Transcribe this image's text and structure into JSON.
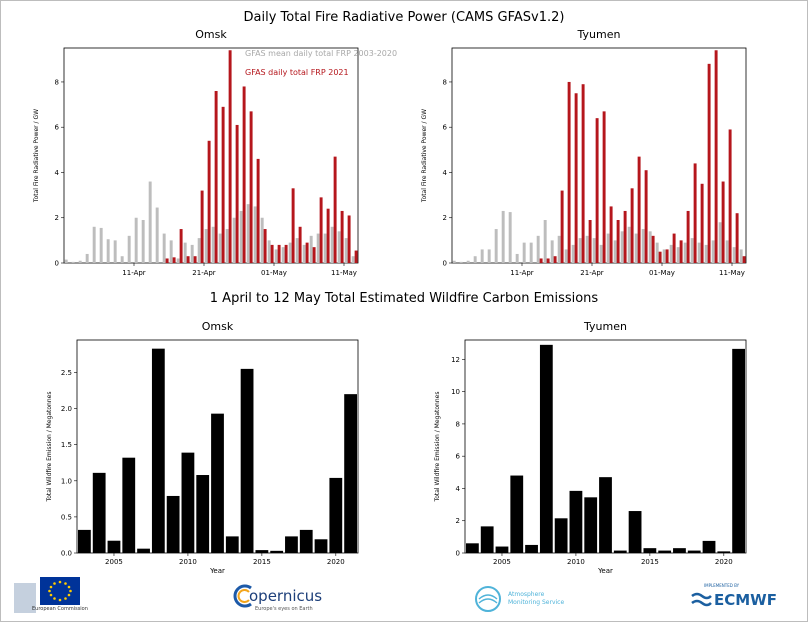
{
  "titles": {
    "top": "Daily Total Fire Radiative Power (CAMS GFASv1.2)",
    "bottom": "1 April to 12 May Total Estimated Wildfire Carbon Emissions"
  },
  "colors": {
    "mean": "#bdbdbd",
    "daily": "#b5161c",
    "emission": "#000000"
  },
  "chart_data": [
    {
      "type": "bar",
      "title": "Omsk",
      "ylabel": "Total Fire Radiative Power / GW",
      "ylim": [
        0,
        9.5
      ],
      "yticks": [
        "0",
        "2",
        "4",
        "6",
        "8"
      ],
      "ytick_values": [
        0,
        2,
        4,
        6,
        8
      ],
      "xticks": [
        "11-Apr",
        "21-Apr",
        "01-May",
        "11-May"
      ],
      "xtick_days": [
        10,
        20,
        30,
        40
      ],
      "x_days": 42,
      "legend_position": "top-center",
      "series": [
        {
          "name": "GFAS mean daily total FRP  2003-2020",
          "values": [
            0.15,
            0.05,
            0.1,
            0.4,
            1.6,
            1.55,
            1.05,
            1.0,
            0.3,
            1.2,
            2.0,
            1.9,
            3.6,
            2.45,
            1.3,
            1.0,
            0.2,
            0.9,
            0.8,
            1.1,
            1.5,
            1.6,
            1.3,
            1.5,
            2.0,
            2.3,
            2.6,
            2.5,
            2.0,
            1.0,
            0.6,
            0.7,
            0.9,
            1.1,
            0.8,
            1.2,
            1.3,
            1.3,
            1.6,
            1.4,
            1.1,
            0.3
          ]
        },
        {
          "name": "GFAS daily total FRP  2021",
          "values": [
            0,
            0,
            0,
            0,
            0,
            0,
            0,
            0,
            0,
            0,
            0,
            0,
            0,
            0,
            0.2,
            0.25,
            1.5,
            0.3,
            0.3,
            3.2,
            5.4,
            7.6,
            6.9,
            9.4,
            6.1,
            7.8,
            6.7,
            4.6,
            1.5,
            0.8,
            0.8,
            0.8,
            3.3,
            1.6,
            0.9,
            0.7,
            2.9,
            2.4,
            4.7,
            2.3,
            2.1,
            0.55
          ]
        }
      ]
    },
    {
      "type": "bar",
      "title": "Tyumen",
      "ylabel": "Total Fire Radiative Power / GW",
      "ylim": [
        0,
        9.5
      ],
      "yticks": [
        "0",
        "2",
        "4",
        "6",
        "8"
      ],
      "ytick_values": [
        0,
        2,
        4,
        6,
        8
      ],
      "xticks": [
        "11-Apr",
        "21-Apr",
        "01-May",
        "11-May"
      ],
      "xtick_days": [
        10,
        20,
        30,
        40
      ],
      "x_days": 42,
      "series": [
        {
          "name": "GFAS mean daily total FRP  2003-2020",
          "values": [
            0.1,
            0.05,
            0.1,
            0.3,
            0.6,
            0.6,
            1.5,
            2.3,
            2.25,
            0.4,
            0.9,
            0.9,
            1.2,
            1.9,
            1.0,
            1.2,
            0.6,
            0.8,
            1.1,
            1.2,
            1.1,
            0.8,
            1.3,
            1.0,
            1.4,
            1.6,
            1.3,
            1.5,
            1.4,
            0.9,
            0.6,
            0.8,
            0.7,
            0.9,
            1.1,
            0.9,
            0.8,
            1.0,
            1.8,
            1.0,
            0.7,
            0.6
          ]
        },
        {
          "name": "GFAS daily total FRP  2021",
          "values": [
            0,
            0,
            0,
            0,
            0,
            0,
            0,
            0,
            0,
            0,
            0,
            0,
            0.2,
            0.2,
            0.3,
            3.2,
            8.0,
            7.5,
            7.9,
            1.9,
            6.4,
            6.7,
            2.5,
            1.9,
            2.3,
            3.3,
            4.7,
            4.1,
            1.2,
            0.5,
            0.6,
            1.3,
            1.0,
            2.3,
            4.4,
            3.5,
            8.8,
            9.4,
            3.6,
            5.9,
            2.2,
            0.3
          ]
        }
      ]
    },
    {
      "type": "bar",
      "title": "Omsk",
      "xlabel": "Year",
      "ylabel": "Total Wildfire Emission / Megatonnes",
      "ylim": [
        0,
        2.95
      ],
      "yticks": [
        "0.0",
        "0.5",
        "1.0",
        "1.5",
        "2.0",
        "2.5"
      ],
      "ytick_values": [
        0,
        0.5,
        1.0,
        1.5,
        2.0,
        2.5
      ],
      "xticks": [
        "2005",
        "2010",
        "2015",
        "2020"
      ],
      "categories": [
        2003,
        2004,
        2005,
        2006,
        2007,
        2008,
        2009,
        2010,
        2011,
        2012,
        2013,
        2014,
        2015,
        2016,
        2017,
        2018,
        2019,
        2020,
        2021
      ],
      "values": [
        0.32,
        1.11,
        0.17,
        1.32,
        0.06,
        2.83,
        0.79,
        1.39,
        1.08,
        1.93,
        0.23,
        2.55,
        0.04,
        0.03,
        0.23,
        0.32,
        0.19,
        1.04,
        2.2
      ]
    },
    {
      "type": "bar",
      "title": "Tyumen",
      "xlabel": "Year",
      "ylabel": "Total Wildfire Emission / Megatonnes",
      "ylim": [
        0,
        13.2
      ],
      "yticks": [
        "0",
        "2",
        "4",
        "6",
        "8",
        "10",
        "12"
      ],
      "ytick_values": [
        0,
        2,
        4,
        6,
        8,
        10,
        12
      ],
      "xticks": [
        "2005",
        "2010",
        "2015",
        "2020"
      ],
      "categories": [
        2003,
        2004,
        2005,
        2006,
        2007,
        2008,
        2009,
        2010,
        2011,
        2012,
        2013,
        2014,
        2015,
        2016,
        2017,
        2018,
        2019,
        2020,
        2021
      ],
      "values": [
        0.6,
        1.65,
        0.4,
        4.8,
        0.5,
        12.9,
        2.15,
        3.85,
        3.45,
        4.7,
        0.15,
        2.6,
        0.3,
        0.15,
        0.3,
        0.15,
        0.75,
        0.1,
        12.65
      ]
    }
  ],
  "logos": {
    "eu_caption": "European Commission",
    "copernicus": "opernicus",
    "copernicus_tagline": "Europe's eyes on Earth",
    "atmosphere_line1": "Atmosphere",
    "atmosphere_line2": "Monitoring Service",
    "implemented_by": "IMPLEMENTED BY",
    "ecmwf": "ECMWF"
  }
}
